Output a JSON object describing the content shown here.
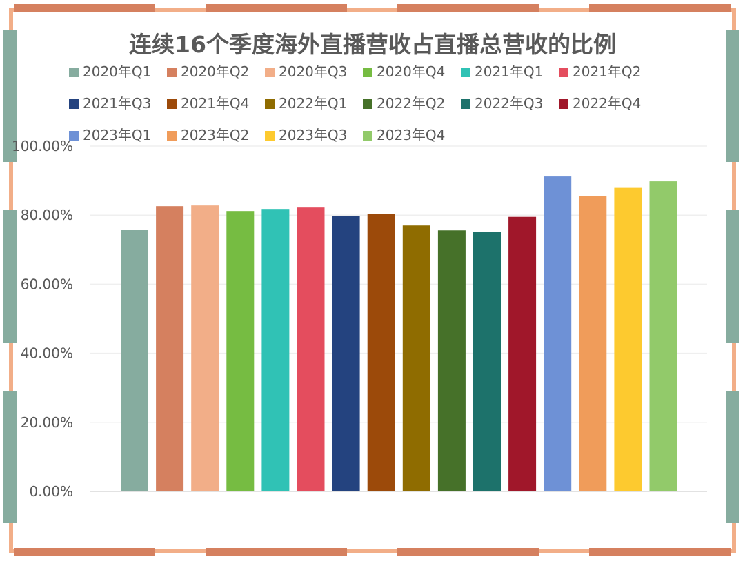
{
  "chart_data": {
    "type": "bar",
    "title": "连续16个季度海外直播营收占直播总营收的比例",
    "categories": [
      "2020年Q1",
      "2020年Q2",
      "2020年Q3",
      "2020年Q4",
      "2021年Q1",
      "2021年Q2",
      "2021年Q3",
      "2021年Q4",
      "2022年Q1",
      "2022年Q2",
      "2022年Q3",
      "2022年Q4",
      "2023年Q1",
      "2023年Q2",
      "2023年Q3",
      "2023年Q4"
    ],
    "values": [
      75.8,
      82.6,
      82.8,
      81.2,
      81.8,
      82.2,
      79.8,
      80.4,
      77.0,
      75.6,
      75.2,
      79.5,
      91.2,
      85.6,
      87.9,
      89.8
    ],
    "colors": [
      "#86AC9F",
      "#D5805F",
      "#F2AE88",
      "#76BC42",
      "#30C2B5",
      "#E44D5E",
      "#24437F",
      "#9C4A0A",
      "#8F6C00",
      "#467129",
      "#1D726B",
      "#A0172A",
      "#6E91D6",
      "#F09C5A",
      "#FDCA2F",
      "#92CA6A"
    ],
    "ylim": [
      0,
      100
    ],
    "yticks": [
      "0.00%",
      "20.00%",
      "40.00%",
      "60.00%",
      "80.00%",
      "100.00%"
    ],
    "ytick_values": [
      0,
      20,
      40,
      60,
      80,
      100
    ],
    "grid": true,
    "legend_position": "top",
    "xlabel": "",
    "ylabel": ""
  }
}
